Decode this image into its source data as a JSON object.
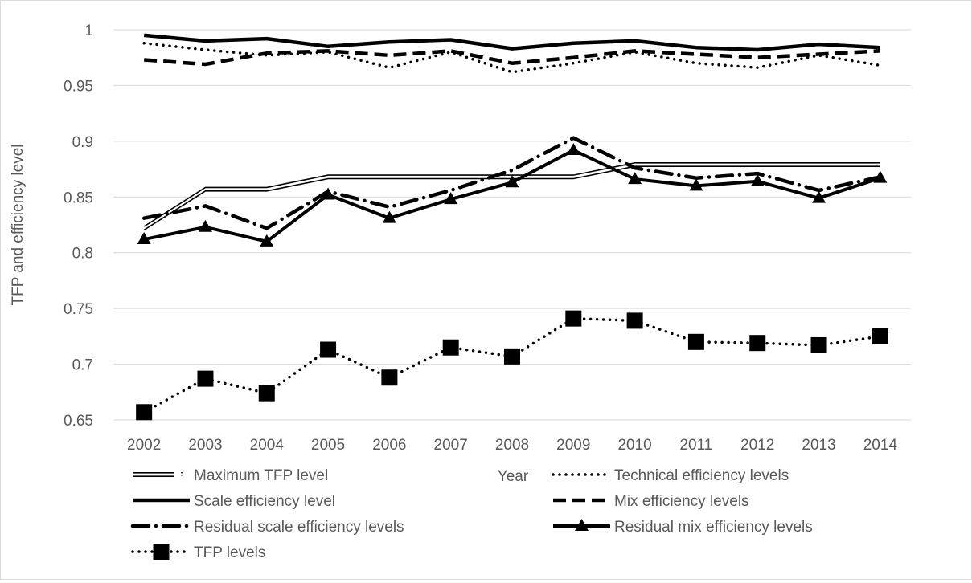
{
  "chart_data": {
    "type": "line",
    "title": "",
    "xlabel": "Year",
    "ylabel": "TFP and efficiency level",
    "ylim": [
      0.65,
      1
    ],
    "yticks": [
      "0.65",
      "0.7",
      "0.75",
      "0.8",
      "0.85",
      "0.9",
      "0.95",
      "1"
    ],
    "categories": [
      "2002",
      "2003",
      "2004",
      "2005",
      "2006",
      "2007",
      "2008",
      "2009",
      "2010",
      "2011",
      "2012",
      "2013",
      "2014"
    ],
    "grid": true,
    "legend_position": "bottom",
    "series": [
      {
        "name": "Maximum TFP level",
        "style": "double-dash",
        "color": "#000000",
        "values": [
          0.822,
          0.857,
          0.857,
          0.868,
          0.868,
          0.868,
          0.868,
          0.868,
          0.879,
          0.879,
          0.879,
          0.879,
          0.879
        ]
      },
      {
        "name": "Technical efficiency levels",
        "style": "dotted",
        "color": "#000000",
        "values": [
          0.988,
          0.982,
          0.977,
          0.98,
          0.966,
          0.98,
          0.962,
          0.97,
          0.98,
          0.97,
          0.966,
          0.977,
          0.968
        ]
      },
      {
        "name": "Scale efficiency level",
        "style": "solid",
        "color": "#000000",
        "values": [
          0.995,
          0.99,
          0.992,
          0.985,
          0.989,
          0.991,
          0.983,
          0.988,
          0.99,
          0.984,
          0.982,
          0.987,
          0.984
        ]
      },
      {
        "name": "Mix efficiency levels",
        "style": "dashed",
        "color": "#000000",
        "values": [
          0.973,
          0.969,
          0.979,
          0.981,
          0.977,
          0.981,
          0.97,
          0.975,
          0.981,
          0.978,
          0.975,
          0.978,
          0.981
        ]
      },
      {
        "name": "Residual scale efficiency levels",
        "style": "dash-dot",
        "color": "#000000",
        "values": [
          0.831,
          0.842,
          0.822,
          0.855,
          0.841,
          0.856,
          0.874,
          0.903,
          0.876,
          0.867,
          0.871,
          0.856,
          0.868
        ]
      },
      {
        "name": "Residual mix efficiency levels",
        "style": "solid-triangle",
        "color": "#000000",
        "values": [
          0.812,
          0.823,
          0.81,
          0.852,
          0.831,
          0.848,
          0.863,
          0.892,
          0.866,
          0.86,
          0.864,
          0.849,
          0.867
        ]
      },
      {
        "name": "TFP levels",
        "style": "dotted-square",
        "color": "#000000",
        "values": [
          0.657,
          0.687,
          0.674,
          0.713,
          0.688,
          0.715,
          0.707,
          0.741,
          0.739,
          0.72,
          0.719,
          0.717,
          0.725
        ]
      }
    ]
  }
}
